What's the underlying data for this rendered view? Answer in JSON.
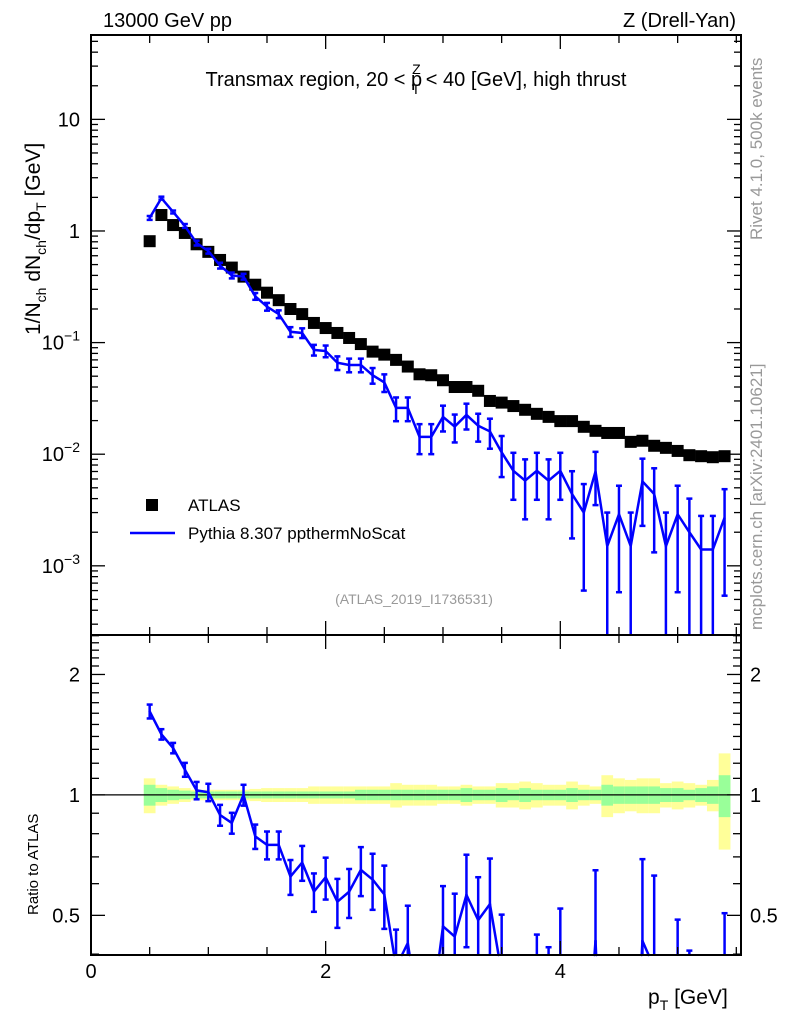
{
  "chart_data": {
    "type": "scatter",
    "header_left": "13000 GeV pp",
    "header_right": "Z (Drell-Yan)",
    "title": {
      "pre": "Transmax region, 20 < p",
      "sub": "T",
      "sup": "Z",
      "post": " < 40 [GeV], high thrust"
    },
    "ylabel": {
      "a": "1/N",
      "a_sub": "ch",
      "b": " dN",
      "b_sub": "ch",
      "c": "/dp",
      "c_sub": "T",
      "d": " [GeV]"
    },
    "xlabel": {
      "main": "p",
      "sub": "T",
      "unit": " [GeV]"
    },
    "ratio_ylabel": "Ratio to ATLAS",
    "analysis_id": "(ATLAS_2019_I1736531)",
    "side_text_top": "Rivet 4.1.0,  500k events",
    "side_text_bottom": "mcplots.cern.ch [arXiv:2401.10621]",
    "xlim": [
      0,
      5.54
    ],
    "ylim": [
      0.00024,
      57
    ],
    "yscale": "log",
    "ratio_ylim": [
      0.398,
      2.51
    ],
    "ratio_yscale": "log",
    "x_ticks": [
      {
        "v": 0,
        "label": "0"
      },
      {
        "v": 2,
        "label": "2"
      },
      {
        "v": 4,
        "label": "4"
      }
    ],
    "y_ticks": [
      {
        "v": 10,
        "base": "10",
        "exp": ""
      },
      {
        "v": 1,
        "base": "1",
        "exp": ""
      },
      {
        "v": 0.1,
        "base": "10",
        "exp": "−1"
      },
      {
        "v": 0.01,
        "base": "10",
        "exp": "−2"
      },
      {
        "v": 0.001,
        "base": "10",
        "exp": "−3"
      }
    ],
    "ratio_ticks": [
      {
        "v": 2,
        "label": "2"
      },
      {
        "v": 1,
        "label": "1"
      },
      {
        "v": 0.5,
        "label": "0.5"
      }
    ],
    "legend": {
      "placement": "lower-left",
      "atlas": "ATLAS",
      "mc": "Pythia 8.307 ppthermNoScat"
    },
    "colors": {
      "atlas": "#000000",
      "mc": "#0000ff",
      "stat_band": "#99ff99",
      "total_band": "#ffff99"
    },
    "x": [
      0.5,
      0.6,
      0.7,
      0.8,
      0.9,
      1.0,
      1.1,
      1.2,
      1.3,
      1.4,
      1.5,
      1.6,
      1.7,
      1.8,
      1.9,
      2.0,
      2.1,
      2.2,
      2.3,
      2.4,
      2.5,
      2.6,
      2.7,
      2.8,
      2.9,
      3.0,
      3.1,
      3.2,
      3.3,
      3.4,
      3.5,
      3.6,
      3.7,
      3.8,
      3.9,
      4.0,
      4.1,
      4.2,
      4.3,
      4.4,
      4.5,
      4.6,
      4.7,
      4.8,
      4.9,
      5.0,
      5.1,
      5.2,
      5.3,
      5.4
    ],
    "series": [
      {
        "name": "ATLAS",
        "values": [
          0.81,
          1.39,
          1.13,
          0.96,
          0.76,
          0.65,
          0.55,
          0.47,
          0.39,
          0.33,
          0.28,
          0.24,
          0.2,
          0.18,
          0.15,
          0.135,
          0.122,
          0.11,
          0.097,
          0.083,
          0.078,
          0.07,
          0.061,
          0.052,
          0.051,
          0.046,
          0.04,
          0.04,
          0.037,
          0.03,
          0.029,
          0.027,
          0.025,
          0.023,
          0.0216,
          0.0198,
          0.0198,
          0.0176,
          0.0162,
          0.0155,
          0.0155,
          0.0129,
          0.0132,
          0.0119,
          0.0114,
          0.0107,
          0.0098,
          0.0096,
          0.0094,
          0.0096
        ],
        "stat_relerr": [
          0.06,
          0.04,
          0.03,
          0.025,
          0.02,
          0.02,
          0.02,
          0.02,
          0.02,
          0.02,
          0.02,
          0.02,
          0.02,
          0.02,
          0.02,
          0.02,
          0.02,
          0.02,
          0.03,
          0.03,
          0.03,
          0.03,
          0.03,
          0.03,
          0.03,
          0.03,
          0.03,
          0.04,
          0.03,
          0.03,
          0.04,
          0.03,
          0.04,
          0.03,
          0.03,
          0.03,
          0.04,
          0.03,
          0.03,
          0.06,
          0.05,
          0.05,
          0.05,
          0.05,
          0.04,
          0.04,
          0.03,
          0.04,
          0.05,
          0.12
        ],
        "total_relerr": [
          0.1,
          0.06,
          0.05,
          0.04,
          0.03,
          0.03,
          0.03,
          0.03,
          0.03,
          0.035,
          0.04,
          0.04,
          0.04,
          0.04,
          0.05,
          0.05,
          0.05,
          0.05,
          0.05,
          0.05,
          0.05,
          0.07,
          0.06,
          0.06,
          0.06,
          0.05,
          0.05,
          0.06,
          0.05,
          0.05,
          0.07,
          0.07,
          0.08,
          0.07,
          0.06,
          0.06,
          0.08,
          0.06,
          0.05,
          0.12,
          0.1,
          0.09,
          0.1,
          0.1,
          0.07,
          0.08,
          0.07,
          0.06,
          0.09,
          0.27
        ]
      },
      {
        "name": "Pythia 8.307 ppthermNoScat",
        "values": [
          1.31,
          1.97,
          1.48,
          1.11,
          0.78,
          0.66,
          0.49,
          0.4,
          0.39,
          0.26,
          0.21,
          0.18,
          0.125,
          0.122,
          0.086,
          0.084,
          0.066,
          0.063,
          0.063,
          0.051,
          0.044,
          0.026,
          0.026,
          0.0143,
          0.0143,
          0.0216,
          0.0177,
          0.0225,
          0.018,
          0.016,
          0.0104,
          0.0071,
          0.0058,
          0.0071,
          0.0058,
          0.0071,
          0.0044,
          0.003,
          0.007,
          0.0015,
          0.0029,
          0.0015,
          0.0057,
          0.0044,
          0.0015,
          0.0029,
          0.002,
          0.0014,
          0.0014,
          0.0027
        ],
        "relerr": [
          0.04,
          0.03,
          0.03,
          0.04,
          0.05,
          0.05,
          0.06,
          0.06,
          0.06,
          0.07,
          0.08,
          0.08,
          0.1,
          0.1,
          0.11,
          0.12,
          0.14,
          0.14,
          0.14,
          0.16,
          0.18,
          0.24,
          0.24,
          0.3,
          0.3,
          0.26,
          0.28,
          0.26,
          0.28,
          0.3,
          0.4,
          0.45,
          0.55,
          0.45,
          0.55,
          0.45,
          0.6,
          0.8,
          0.5,
          1.0,
          0.8,
          1.0,
          0.6,
          0.7,
          1.0,
          0.8,
          1.0,
          1.0,
          1.0,
          0.8
        ]
      }
    ]
  }
}
